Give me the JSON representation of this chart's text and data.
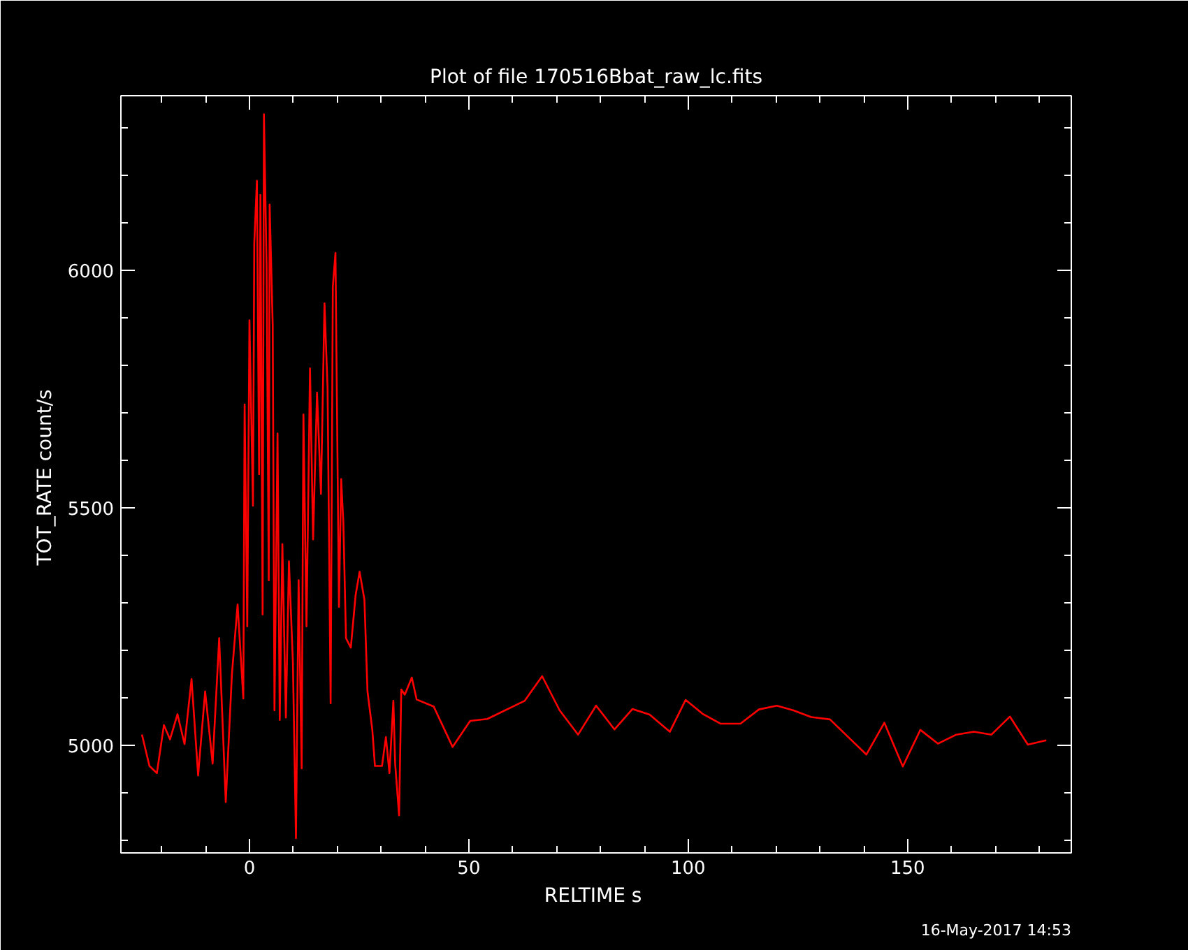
{
  "chart_data": {
    "type": "line",
    "title": "Plot of file 170516Bbat_raw_lc.fits",
    "xlabel": "RELTIME  s",
    "ylabel": "TOT_RATE  count/s",
    "annotations": [
      "16-May-2017 14:53"
    ],
    "xlim": [
      -29.3,
      187.3
    ],
    "ylim": [
      4774,
      6368
    ],
    "xticks": [
      0,
      50,
      100,
      150
    ],
    "yticks": [
      5000,
      5500,
      6000
    ],
    "grid": false,
    "marker": "none",
    "line_style": "solid",
    "series": [
      {
        "color": "#ff0000",
        "x": [
          -24.5,
          -22.8,
          -21.1,
          -19.5,
          -18.1,
          -16.4,
          -14.8,
          -13.2,
          -11.7,
          -10.1,
          -8.4,
          -6.9,
          -5.4,
          -4.0,
          -2.7,
          -1.4,
          -1.1,
          -0.5,
          0.0,
          0.8,
          1.1,
          1.7,
          2.2,
          2.5,
          3.0,
          3.3,
          3.9,
          4.4,
          4.6,
          5.3,
          5.7,
          6.4,
          6.9,
          7.5,
          8.3,
          9.0,
          9.9,
          10.6,
          11.2,
          11.9,
          12.3,
          13.0,
          13.8,
          14.5,
          15.4,
          16.3,
          17.1,
          17.8,
          18.5,
          19.0,
          19.6,
          20.4,
          20.9,
          21.4,
          22.0,
          23.1,
          24.2,
          25.1,
          26.2,
          26.9,
          28.0,
          28.6,
          30.2,
          31.1,
          31.9,
          32.8,
          33.2,
          34.1,
          34.6,
          35.4,
          37.0,
          38.1,
          42.0,
          46.3,
          50.3,
          54.2,
          62.7,
          66.7,
          70.7,
          74.9,
          79.0,
          83.2,
          87.3,
          91.2,
          95.8,
          99.4,
          103.4,
          107.4,
          111.9,
          116.1,
          120.2,
          124.0,
          128.0,
          132.3,
          140.6,
          144.7,
          148.9,
          152.9,
          156.9,
          161.1,
          165.1,
          169.1,
          173.3,
          177.4,
          181.6
        ],
        "values": [
          5023,
          4957,
          4942,
          5043,
          5013,
          5066,
          5003,
          5140,
          4937,
          5114,
          4962,
          5226,
          4881,
          5150,
          5297,
          5099,
          5718,
          5251,
          5895,
          5505,
          6058,
          6189,
          5571,
          6159,
          5276,
          6329,
          6012,
          5348,
          6139,
          5885,
          5074,
          5657,
          5054,
          5424,
          5059,
          5388,
          5175,
          4805,
          5348,
          4952,
          5697,
          5251,
          5794,
          5434,
          5743,
          5530,
          5931,
          5753,
          5089,
          5966,
          6037,
          5292,
          5561,
          5469,
          5226,
          5206,
          5317,
          5366,
          5307,
          5114,
          5033,
          4957,
          4957,
          5018,
          4942,
          5094,
          4962,
          4853,
          5118,
          5107,
          5143,
          5097,
          5082,
          4997,
          5052,
          5056,
          5094,
          5146,
          5074,
          5023,
          5084,
          5034,
          5077,
          5065,
          5029,
          5096,
          5066,
          5046,
          5046,
          5076,
          5084,
          5074,
          5060,
          5055,
          4981,
          5048,
          4956,
          5033,
          5004,
          5023,
          5029,
          5023,
          5061,
          5002,
          5011
        ]
      }
    ]
  }
}
